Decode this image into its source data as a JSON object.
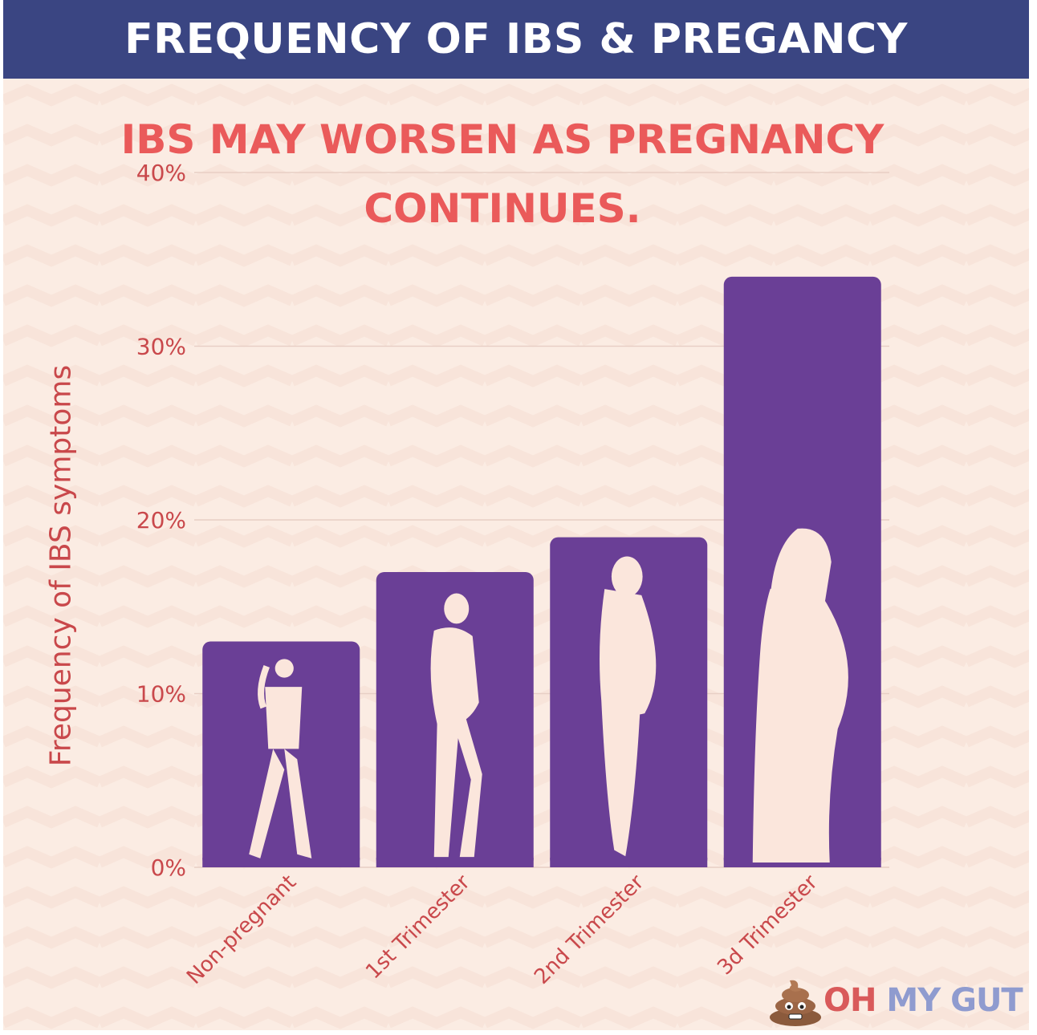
{
  "header": {
    "title": "FREQUENCY OF IBS & PREGANCY"
  },
  "subtitle": {
    "line1": "IBS MAY WORSEN AS PREGNANCY",
    "line2": "CONTINUES."
  },
  "logo": {
    "part1": "OH",
    "part2": " MY GUT"
  },
  "colors": {
    "header_bg": "#3a4582",
    "panel_bg": "#fbece3",
    "bar": "#6a3f96",
    "silhouette": "#fbe6dc",
    "subtitle": "#ea5a5a",
    "axis_text": "#c9484b"
  },
  "chart_data": {
    "type": "bar",
    "title": "",
    "xlabel": "",
    "ylabel": "Frequency of IBS symptoms",
    "categories": [
      "Non-pregnant",
      "1st Trimester",
      "2nd Trimester",
      "3d Trimester"
    ],
    "values": [
      13,
      17,
      19,
      34
    ],
    "unit": "%",
    "ylim": [
      0,
      40
    ],
    "yticks": [
      "0%",
      "10%",
      "20%",
      "30%",
      "40%"
    ],
    "grid": true,
    "legend": "none"
  }
}
